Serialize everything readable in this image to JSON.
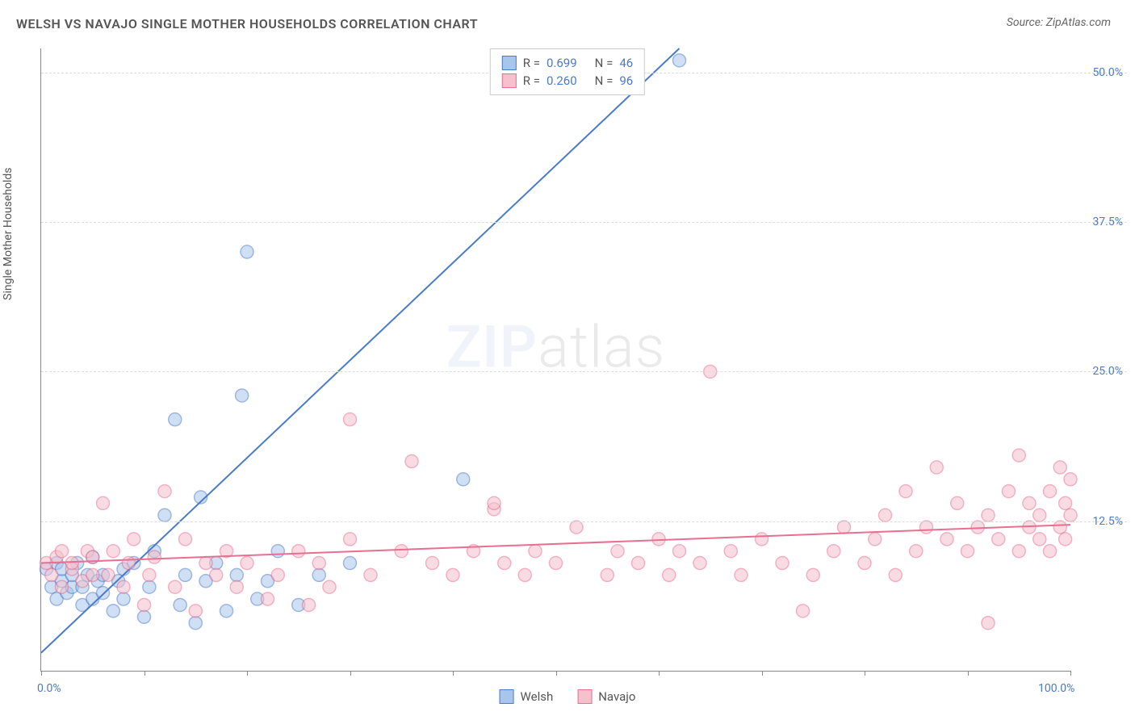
{
  "title": "WELSH VS NAVAJO SINGLE MOTHER HOUSEHOLDS CORRELATION CHART",
  "source": "Source: ZipAtlas.com",
  "y_axis_label": "Single Mother Households",
  "watermark_zip": "ZIP",
  "watermark_atlas": "atlas",
  "x_legend": [
    {
      "label": "Welsh",
      "fill": "#a8c5ec",
      "stroke": "#4a7bc8"
    },
    {
      "label": "Navajo",
      "fill": "#f5c1cd",
      "stroke": "#e86f8f"
    }
  ],
  "stats_legend": [
    {
      "r_label": "R =",
      "r_value": "0.699",
      "n_label": "N =",
      "n_value": "46",
      "fill": "#a8c5ec",
      "stroke": "#4a7bc8"
    },
    {
      "r_label": "R =",
      "r_value": "0.260",
      "n_label": "N =",
      "n_value": "96",
      "fill": "#f5c1cd",
      "stroke": "#e86f8f"
    }
  ],
  "chart": {
    "type": "scatter",
    "xlim": [
      0,
      100
    ],
    "ylim": [
      0,
      52
    ],
    "x_ticks": [
      0,
      10,
      20,
      30,
      40,
      50,
      60,
      70,
      80,
      90,
      100
    ],
    "x_tick_labels": [
      {
        "value": 0,
        "text": "0.0%"
      },
      {
        "value": 100,
        "text": "100.0%"
      }
    ],
    "y_grid": [
      12.5,
      25.0,
      37.5,
      50.0
    ],
    "y_tick_labels": [
      {
        "value": 12.5,
        "text": "12.5%"
      },
      {
        "value": 25.0,
        "text": "25.0%"
      },
      {
        "value": 37.5,
        "text": "37.5%"
      },
      {
        "value": 50.0,
        "text": "50.0%"
      }
    ],
    "background_color": "#ffffff",
    "grid_color": "#dddddd",
    "marker_radius": 8,
    "marker_opacity": 0.55,
    "line_width": 2,
    "series": [
      {
        "name": "Welsh",
        "fill": "#a8c5ec",
        "stroke": "#4a7bc8",
        "trend": {
          "x1": 0,
          "y1": 1.5,
          "x2": 62,
          "y2": 52,
          "dash_from_x": 80
        },
        "points": [
          [
            0.5,
            8.5
          ],
          [
            1,
            7
          ],
          [
            1.5,
            6
          ],
          [
            1.5,
            9
          ],
          [
            2,
            7.5
          ],
          [
            2,
            8.5
          ],
          [
            2.5,
            6.5
          ],
          [
            3,
            7
          ],
          [
            3,
            8
          ],
          [
            3.5,
            9
          ],
          [
            4,
            5.5
          ],
          [
            4,
            7
          ],
          [
            4.5,
            8
          ],
          [
            5,
            6
          ],
          [
            5,
            9.5
          ],
          [
            5.5,
            7.5
          ],
          [
            6,
            6.5
          ],
          [
            6,
            8
          ],
          [
            7,
            5
          ],
          [
            7.5,
            7.5
          ],
          [
            8,
            6
          ],
          [
            8,
            8.5
          ],
          [
            9,
            9
          ],
          [
            10,
            4.5
          ],
          [
            10.5,
            7
          ],
          [
            11,
            10
          ],
          [
            12,
            13
          ],
          [
            13,
            21
          ],
          [
            13.5,
            5.5
          ],
          [
            14,
            8
          ],
          [
            15,
            4
          ],
          [
            15.5,
            14.5
          ],
          [
            16,
            7.5
          ],
          [
            17,
            9
          ],
          [
            18,
            5
          ],
          [
            19,
            8
          ],
          [
            19.5,
            23
          ],
          [
            20,
            35
          ],
          [
            21,
            6
          ],
          [
            22,
            7.5
          ],
          [
            23,
            10
          ],
          [
            25,
            5.5
          ],
          [
            27,
            8
          ],
          [
            30,
            9
          ],
          [
            41,
            16
          ],
          [
            62,
            51
          ]
        ]
      },
      {
        "name": "Navajo",
        "fill": "#f5c1cd",
        "stroke": "#e86f8f",
        "trend": {
          "x1": 0,
          "y1": 9,
          "x2": 100,
          "y2": 12.2
        },
        "points": [
          [
            0.5,
            9
          ],
          [
            1,
            8
          ],
          [
            1.5,
            9.5
          ],
          [
            2,
            7
          ],
          [
            2,
            10
          ],
          [
            3,
            8.5
          ],
          [
            3,
            9
          ],
          [
            4,
            7.5
          ],
          [
            4.5,
            10
          ],
          [
            5,
            8
          ],
          [
            5,
            9.5
          ],
          [
            6,
            14
          ],
          [
            6.5,
            8
          ],
          [
            7,
            10
          ],
          [
            8,
            7
          ],
          [
            8.5,
            9
          ],
          [
            9,
            11
          ],
          [
            10,
            5.5
          ],
          [
            10.5,
            8
          ],
          [
            11,
            9.5
          ],
          [
            12,
            15
          ],
          [
            13,
            7
          ],
          [
            14,
            11
          ],
          [
            15,
            5
          ],
          [
            16,
            9
          ],
          [
            17,
            8
          ],
          [
            18,
            10
          ],
          [
            19,
            7
          ],
          [
            20,
            9
          ],
          [
            22,
            6
          ],
          [
            23,
            8
          ],
          [
            25,
            10
          ],
          [
            26,
            5.5
          ],
          [
            27,
            9
          ],
          [
            28,
            7
          ],
          [
            30,
            11
          ],
          [
            30,
            21
          ],
          [
            32,
            8
          ],
          [
            35,
            10
          ],
          [
            36,
            17.5
          ],
          [
            38,
            9
          ],
          [
            40,
            8
          ],
          [
            42,
            10
          ],
          [
            44,
            13.5
          ],
          [
            44,
            14
          ],
          [
            45,
            9
          ],
          [
            47,
            8
          ],
          [
            48,
            10
          ],
          [
            50,
            9
          ],
          [
            52,
            12
          ],
          [
            55,
            8
          ],
          [
            56,
            10
          ],
          [
            58,
            9
          ],
          [
            60,
            11
          ],
          [
            61,
            8
          ],
          [
            62,
            10
          ],
          [
            64,
            9
          ],
          [
            65,
            25
          ],
          [
            67,
            10
          ],
          [
            68,
            8
          ],
          [
            70,
            11
          ],
          [
            72,
            9
          ],
          [
            74,
            5
          ],
          [
            75,
            8
          ],
          [
            77,
            10
          ],
          [
            78,
            12
          ],
          [
            80,
            9
          ],
          [
            81,
            11
          ],
          [
            82,
            13
          ],
          [
            83,
            8
          ],
          [
            84,
            15
          ],
          [
            85,
            10
          ],
          [
            86,
            12
          ],
          [
            87,
            17
          ],
          [
            88,
            11
          ],
          [
            89,
            14
          ],
          [
            90,
            10
          ],
          [
            91,
            12
          ],
          [
            92,
            4
          ],
          [
            92,
            13
          ],
          [
            93,
            11
          ],
          [
            94,
            15
          ],
          [
            95,
            10
          ],
          [
            95,
            18
          ],
          [
            96,
            12
          ],
          [
            96,
            14
          ],
          [
            97,
            11
          ],
          [
            97,
            13
          ],
          [
            98,
            10
          ],
          [
            98,
            15
          ],
          [
            99,
            12
          ],
          [
            99,
            17
          ],
          [
            99.5,
            11
          ],
          [
            99.5,
            14
          ],
          [
            100,
            13
          ],
          [
            100,
            16
          ]
        ]
      }
    ]
  }
}
